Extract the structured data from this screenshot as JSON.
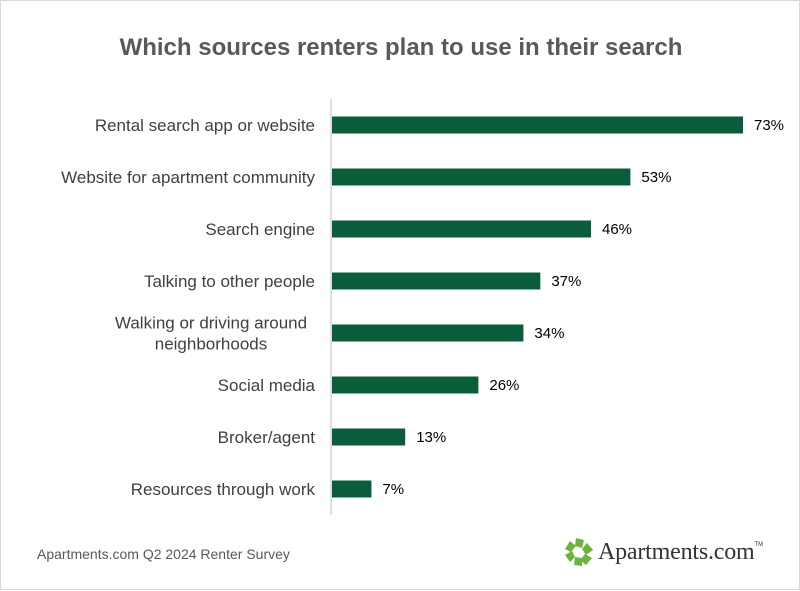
{
  "chart_data": {
    "type": "bar",
    "orientation": "horizontal",
    "title": "Which sources renters plan to use in their search",
    "categories": [
      "Rental search app or website",
      "Website for apartment community",
      "Search engine",
      "Talking to other people",
      "Walking or driving around neighborhoods",
      "Social media",
      "Broker/agent",
      "Resources through work"
    ],
    "values": [
      73,
      53,
      46,
      37,
      34,
      26,
      13,
      7
    ],
    "value_labels": [
      "73%",
      "53%",
      "46%",
      "37%",
      "34%",
      "26%",
      "13%",
      "7%"
    ],
    "unit": "%",
    "xlim": [
      0,
      73
    ],
    "grid": false,
    "legend": "none",
    "bar_color": "#0b5c3a"
  },
  "footer": {
    "source": "Apartments.com Q2 2024 Renter Survey",
    "brand": "Apartments.com",
    "brand_tm": "TM"
  },
  "icons": {
    "brand_logo": "apartments-com-logo-icon"
  },
  "colors": {
    "bar": "#0b5c3a",
    "logo_green": "#6db33f",
    "title_text": "#595959"
  }
}
